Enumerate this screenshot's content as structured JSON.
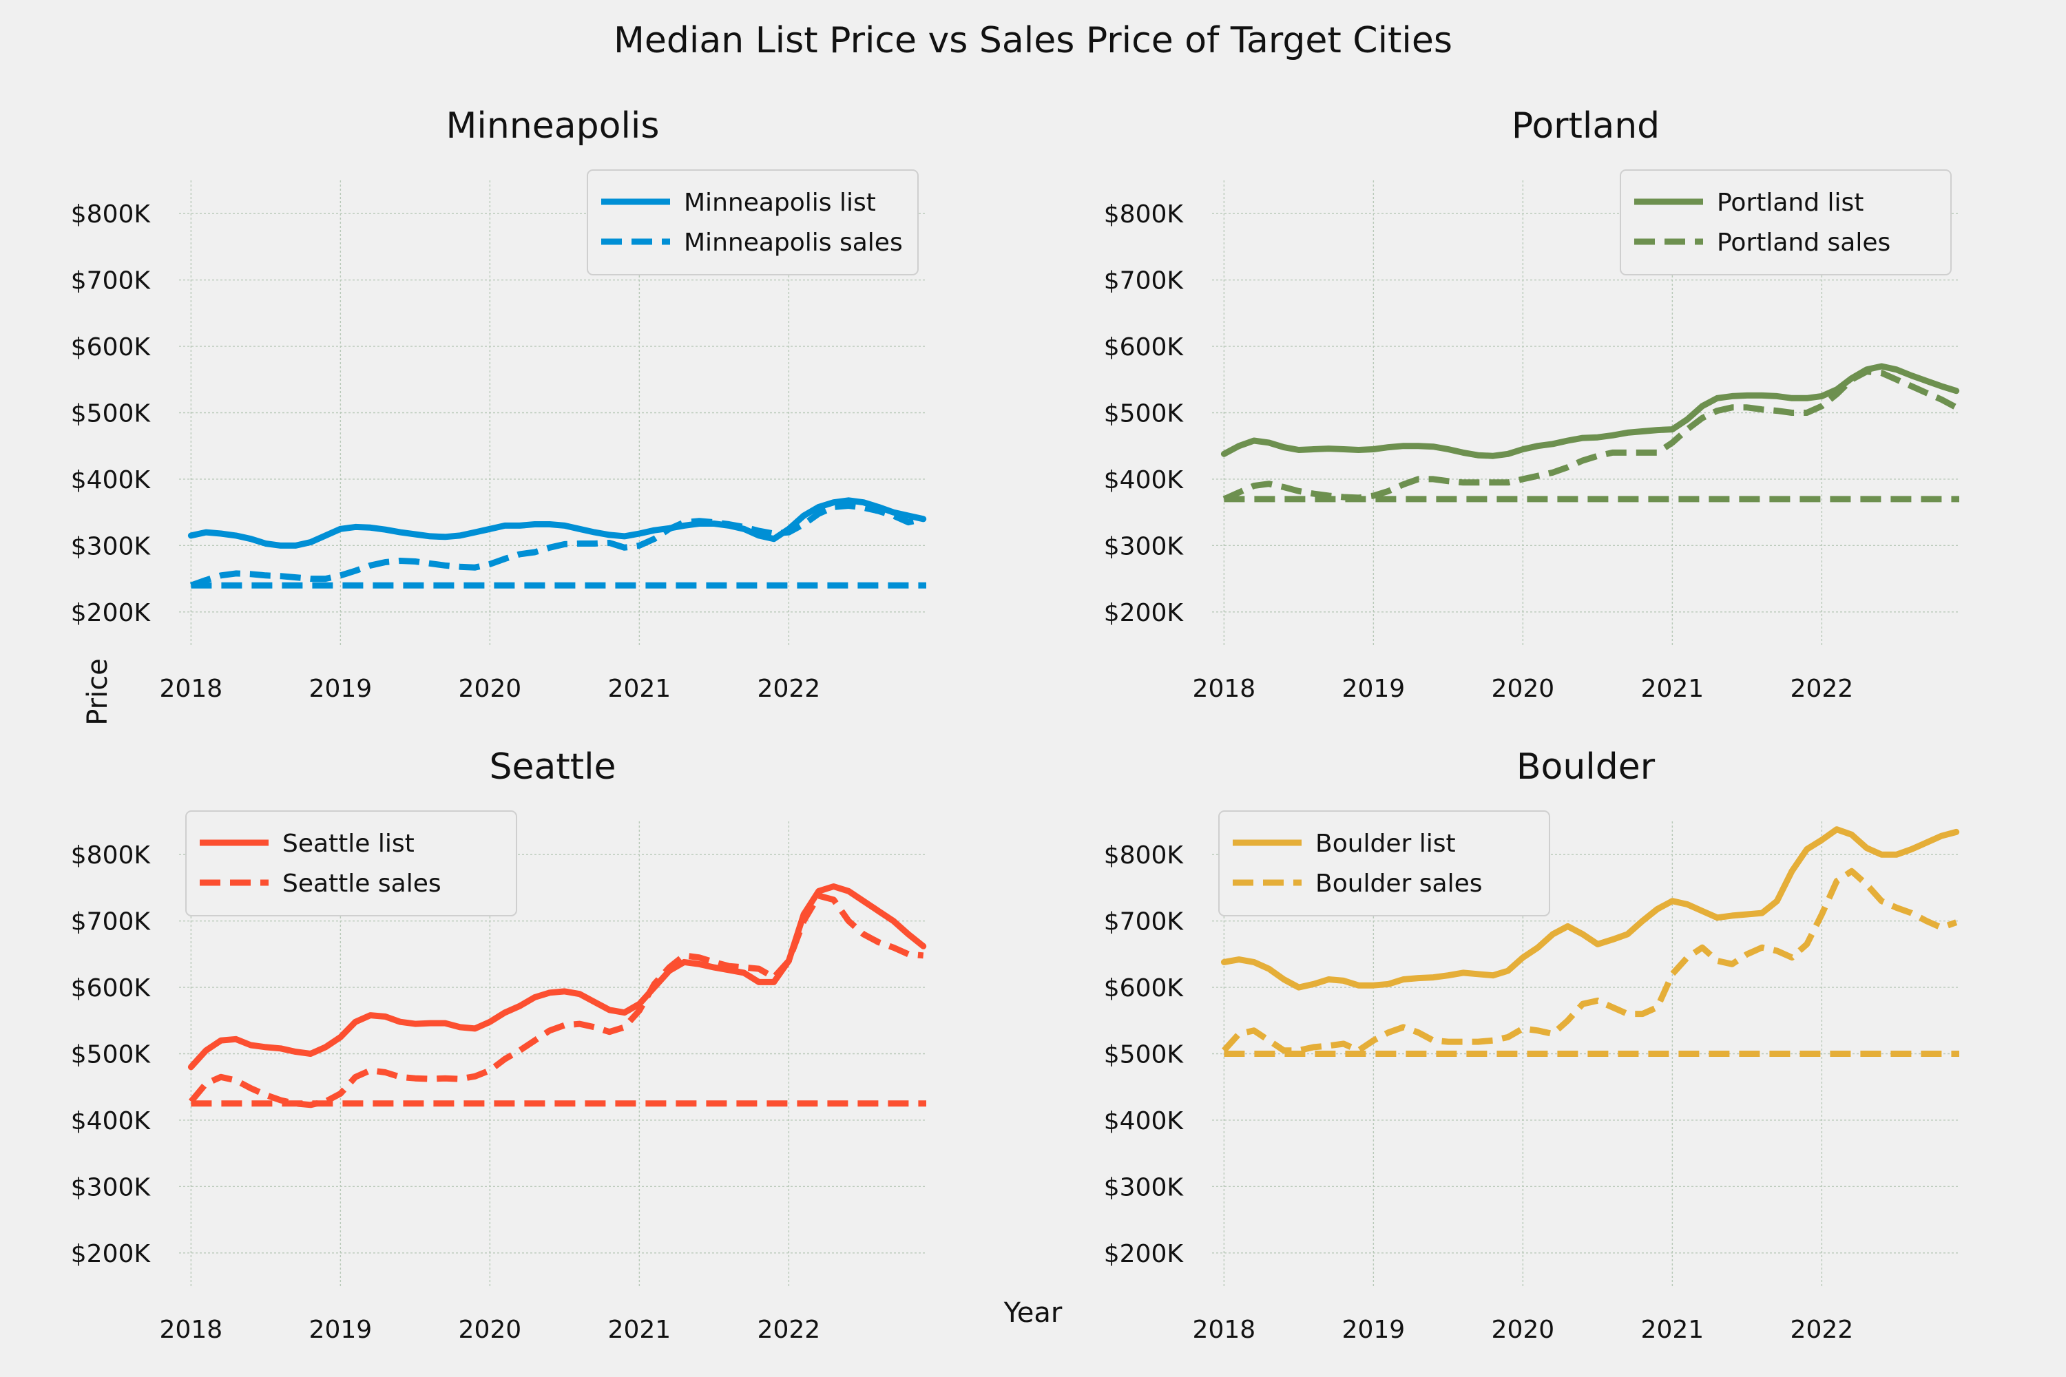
{
  "figure": {
    "title": "Median List Price vs Sales Price of Target Cities",
    "xlabel": "Year",
    "ylabel": "Price"
  },
  "chart_data": [
    {
      "type": "line",
      "title": "Minneapolis",
      "color": "#008fd5",
      "xlim": [
        2017.92,
        2022.92
      ],
      "ylim": [
        150,
        850
      ],
      "xticks": [
        2018,
        2019,
        2020,
        2021,
        2022
      ],
      "yticks": [
        200,
        300,
        400,
        500,
        600,
        700,
        800
      ],
      "ytick_labels": [
        "$200K",
        "$300K",
        "$400K",
        "$500K",
        "$600K",
        "$700K",
        "$800K"
      ],
      "grid": true,
      "legend_position": "top-right",
      "series": [
        {
          "name": "Minneapolis list",
          "style": "solid",
          "x": [
            2018.0,
            2018.1,
            2018.2,
            2018.3,
            2018.4,
            2018.5,
            2018.6,
            2018.7,
            2018.8,
            2018.9,
            2019.0,
            2019.1,
            2019.2,
            2019.3,
            2019.4,
            2019.5,
            2019.6,
            2019.7,
            2019.8,
            2019.9,
            2020.0,
            2020.1,
            2020.2,
            2020.3,
            2020.4,
            2020.5,
            2020.6,
            2020.7,
            2020.8,
            2020.9,
            2021.0,
            2021.1,
            2021.2,
            2021.3,
            2021.4,
            2021.5,
            2021.6,
            2021.7,
            2021.8,
            2021.9,
            2022.0,
            2022.1,
            2022.2,
            2022.3,
            2022.4,
            2022.5,
            2022.6,
            2022.7,
            2022.8,
            2022.9
          ],
          "y": [
            315,
            320,
            318,
            315,
            310,
            303,
            300,
            300,
            305,
            315,
            325,
            328,
            327,
            324,
            320,
            317,
            314,
            313,
            315,
            320,
            325,
            330,
            330,
            332,
            332,
            330,
            325,
            320,
            316,
            314,
            318,
            323,
            326,
            330,
            333,
            333,
            330,
            325,
            315,
            310,
            325,
            345,
            358,
            365,
            368,
            365,
            358,
            350,
            345,
            340
          ]
        },
        {
          "name": "Minneapolis sales",
          "style": "dashed",
          "x": [
            2018.0,
            2018.1,
            2018.2,
            2018.3,
            2018.4,
            2018.5,
            2018.6,
            2018.7,
            2018.8,
            2018.9,
            2019.0,
            2019.1,
            2019.2,
            2019.3,
            2019.4,
            2019.5,
            2019.6,
            2019.7,
            2019.8,
            2019.9,
            2020.0,
            2020.1,
            2020.2,
            2020.3,
            2020.4,
            2020.5,
            2020.6,
            2020.7,
            2020.8,
            2020.9,
            2021.0,
            2021.1,
            2021.2,
            2021.3,
            2021.4,
            2021.5,
            2021.6,
            2021.7,
            2021.8,
            2021.9,
            2022.0,
            2022.1,
            2022.2,
            2022.3,
            2022.4,
            2022.5,
            2022.6,
            2022.7,
            2022.8,
            2022.9
          ],
          "y": [
            240,
            248,
            255,
            258,
            257,
            255,
            254,
            252,
            250,
            250,
            255,
            262,
            270,
            275,
            277,
            276,
            273,
            270,
            268,
            267,
            272,
            280,
            287,
            290,
            297,
            302,
            303,
            303,
            304,
            297,
            300,
            310,
            325,
            335,
            337,
            335,
            332,
            328,
            322,
            318,
            320,
            332,
            348,
            358,
            360,
            357,
            352,
            345,
            335,
            340
          ]
        },
        {
          "name": "",
          "style": "dashed",
          "x": [
            2018.0,
            2022.92
          ],
          "y": [
            240,
            240
          ]
        }
      ]
    },
    {
      "type": "line",
      "title": "Portland",
      "color": "#6d904f",
      "xlim": [
        2017.92,
        2022.92
      ],
      "ylim": [
        150,
        850
      ],
      "xticks": [
        2018,
        2019,
        2020,
        2021,
        2022
      ],
      "yticks": [
        200,
        300,
        400,
        500,
        600,
        700,
        800
      ],
      "ytick_labels": [
        "$200K",
        "$300K",
        "$400K",
        "$500K",
        "$600K",
        "$700K",
        "$800K"
      ],
      "grid": true,
      "legend_position": "top-right",
      "series": [
        {
          "name": "Portland list",
          "style": "solid",
          "x": [
            2018.0,
            2018.1,
            2018.2,
            2018.3,
            2018.4,
            2018.5,
            2018.6,
            2018.7,
            2018.8,
            2018.9,
            2019.0,
            2019.1,
            2019.2,
            2019.3,
            2019.4,
            2019.5,
            2019.6,
            2019.7,
            2019.8,
            2019.9,
            2020.0,
            2020.1,
            2020.2,
            2020.3,
            2020.4,
            2020.5,
            2020.6,
            2020.7,
            2020.8,
            2020.9,
            2021.0,
            2021.1,
            2021.2,
            2021.3,
            2021.4,
            2021.5,
            2021.6,
            2021.7,
            2021.8,
            2021.9,
            2022.0,
            2022.1,
            2022.2,
            2022.3,
            2022.4,
            2022.5,
            2022.6,
            2022.7,
            2022.8,
            2022.9
          ],
          "y": [
            438,
            450,
            458,
            455,
            448,
            444,
            445,
            446,
            445,
            444,
            445,
            448,
            450,
            450,
            449,
            445,
            440,
            436,
            435,
            438,
            445,
            450,
            453,
            458,
            462,
            463,
            466,
            470,
            472,
            474,
            475,
            490,
            510,
            522,
            525,
            526,
            526,
            525,
            522,
            522,
            525,
            535,
            552,
            565,
            570,
            565,
            556,
            548,
            540,
            533
          ]
        },
        {
          "name": "Portland sales",
          "style": "dashed",
          "x": [
            2018.0,
            2018.1,
            2018.2,
            2018.3,
            2018.4,
            2018.5,
            2018.6,
            2018.7,
            2018.8,
            2018.9,
            2019.0,
            2019.1,
            2019.2,
            2019.3,
            2019.4,
            2019.5,
            2019.6,
            2019.7,
            2019.8,
            2019.9,
            2020.0,
            2020.1,
            2020.2,
            2020.3,
            2020.4,
            2020.5,
            2020.6,
            2020.7,
            2020.8,
            2020.9,
            2021.0,
            2021.1,
            2021.2,
            2021.3,
            2021.4,
            2021.5,
            2021.6,
            2021.7,
            2021.8,
            2021.9,
            2022.0,
            2022.1,
            2022.2,
            2022.3,
            2022.4,
            2022.5,
            2022.6,
            2022.7,
            2022.8,
            2022.9
          ],
          "y": [
            370,
            380,
            390,
            393,
            388,
            382,
            378,
            375,
            373,
            372,
            375,
            382,
            392,
            400,
            400,
            397,
            395,
            395,
            395,
            395,
            400,
            405,
            410,
            418,
            428,
            435,
            440,
            440,
            440,
            440,
            455,
            475,
            492,
            503,
            508,
            508,
            505,
            503,
            500,
            500,
            510,
            528,
            550,
            562,
            560,
            550,
            540,
            530,
            520,
            508
          ]
        },
        {
          "name": "",
          "style": "dashed",
          "x": [
            2018.0,
            2022.92
          ],
          "y": [
            370,
            370
          ]
        }
      ]
    },
    {
      "type": "line",
      "title": "Seattle",
      "color": "#fc4f30",
      "xlim": [
        2017.92,
        2022.92
      ],
      "ylim": [
        150,
        850
      ],
      "xticks": [
        2018,
        2019,
        2020,
        2021,
        2022
      ],
      "yticks": [
        200,
        300,
        400,
        500,
        600,
        700,
        800
      ],
      "ytick_labels": [
        "$200K",
        "$300K",
        "$400K",
        "$500K",
        "$600K",
        "$700K",
        "$800K"
      ],
      "grid": true,
      "legend_position": "top-left",
      "series": [
        {
          "name": "Seattle list",
          "style": "solid",
          "x": [
            2018.0,
            2018.1,
            2018.2,
            2018.3,
            2018.4,
            2018.5,
            2018.6,
            2018.7,
            2018.8,
            2018.9,
            2019.0,
            2019.1,
            2019.2,
            2019.3,
            2019.4,
            2019.5,
            2019.6,
            2019.7,
            2019.8,
            2019.9,
            2020.0,
            2020.1,
            2020.2,
            2020.3,
            2020.4,
            2020.5,
            2020.6,
            2020.7,
            2020.8,
            2020.9,
            2021.0,
            2021.1,
            2021.2,
            2021.3,
            2021.4,
            2021.5,
            2021.6,
            2021.7,
            2021.8,
            2021.9,
            2022.0,
            2022.1,
            2022.2,
            2022.3,
            2022.4,
            2022.5,
            2022.6,
            2022.7,
            2022.8,
            2022.9
          ],
          "y": [
            480,
            505,
            520,
            522,
            513,
            510,
            508,
            503,
            500,
            510,
            525,
            548,
            558,
            556,
            548,
            545,
            546,
            546,
            540,
            538,
            548,
            562,
            572,
            585,
            592,
            594,
            590,
            578,
            566,
            562,
            575,
            600,
            625,
            638,
            635,
            630,
            626,
            622,
            608,
            608,
            640,
            710,
            745,
            752,
            745,
            730,
            715,
            700,
            680,
            662
          ]
        },
        {
          "name": "Seattle sales",
          "style": "dashed",
          "x": [
            2018.0,
            2018.1,
            2018.2,
            2018.3,
            2018.4,
            2018.5,
            2018.6,
            2018.7,
            2018.8,
            2018.9,
            2019.0,
            2019.1,
            2019.2,
            2019.3,
            2019.4,
            2019.5,
            2019.6,
            2019.7,
            2019.8,
            2019.9,
            2020.0,
            2020.1,
            2020.2,
            2020.3,
            2020.4,
            2020.5,
            2020.6,
            2020.7,
            2020.8,
            2020.9,
            2021.0,
            2021.1,
            2021.2,
            2021.3,
            2021.4,
            2021.5,
            2021.6,
            2021.7,
            2021.8,
            2021.9,
            2022.0,
            2022.1,
            2022.2,
            2022.3,
            2022.4,
            2022.5,
            2022.6,
            2022.7,
            2022.8,
            2022.9
          ],
          "y": [
            428,
            455,
            465,
            460,
            448,
            438,
            430,
            425,
            423,
            428,
            440,
            465,
            475,
            472,
            465,
            463,
            462,
            463,
            462,
            466,
            475,
            492,
            505,
            520,
            535,
            543,
            545,
            540,
            533,
            540,
            565,
            605,
            630,
            648,
            645,
            638,
            632,
            630,
            628,
            615,
            640,
            700,
            738,
            732,
            700,
            680,
            668,
            660,
            650,
            648
          ]
        },
        {
          "name": "",
          "style": "dashed",
          "x": [
            2018.0,
            2022.92
          ],
          "y": [
            425,
            425
          ]
        }
      ]
    },
    {
      "type": "line",
      "title": "Boulder",
      "color": "#e5ae38",
      "xlim": [
        2017.92,
        2022.92
      ],
      "ylim": [
        150,
        850
      ],
      "xticks": [
        2018,
        2019,
        2020,
        2021,
        2022
      ],
      "yticks": [
        200,
        300,
        400,
        500,
        600,
        700,
        800
      ],
      "ytick_labels": [
        "$200K",
        "$300K",
        "$400K",
        "$500K",
        "$600K",
        "$700K",
        "$800K"
      ],
      "grid": true,
      "legend_position": "top-left",
      "series": [
        {
          "name": "Boulder list",
          "style": "solid",
          "x": [
            2018.0,
            2018.1,
            2018.2,
            2018.3,
            2018.4,
            2018.5,
            2018.6,
            2018.7,
            2018.8,
            2018.9,
            2019.0,
            2019.1,
            2019.2,
            2019.3,
            2019.4,
            2019.5,
            2019.6,
            2019.7,
            2019.8,
            2019.9,
            2020.0,
            2020.1,
            2020.2,
            2020.3,
            2020.4,
            2020.5,
            2020.6,
            2020.7,
            2020.8,
            2020.9,
            2021.0,
            2021.1,
            2021.2,
            2021.3,
            2021.4,
            2021.5,
            2021.6,
            2021.7,
            2021.8,
            2021.9,
            2022.0,
            2022.1,
            2022.2,
            2022.3,
            2022.4,
            2022.5,
            2022.6,
            2022.7,
            2022.8,
            2022.9
          ],
          "y": [
            638,
            642,
            638,
            628,
            612,
            600,
            605,
            612,
            610,
            603,
            603,
            605,
            612,
            614,
            615,
            618,
            622,
            620,
            618,
            625,
            645,
            660,
            680,
            692,
            680,
            665,
            672,
            680,
            700,
            718,
            730,
            725,
            715,
            705,
            708,
            710,
            712,
            730,
            775,
            808,
            822,
            838,
            830,
            810,
            800,
            800,
            808,
            818,
            828,
            834
          ]
        },
        {
          "name": "Boulder sales",
          "style": "dashed",
          "x": [
            2018.0,
            2018.1,
            2018.2,
            2018.3,
            2018.4,
            2018.5,
            2018.6,
            2018.7,
            2018.8,
            2018.9,
            2019.0,
            2019.1,
            2019.2,
            2019.3,
            2019.4,
            2019.5,
            2019.6,
            2019.7,
            2019.8,
            2019.9,
            2020.0,
            2020.1,
            2020.2,
            2020.3,
            2020.4,
            2020.5,
            2020.6,
            2020.7,
            2020.8,
            2020.9,
            2021.0,
            2021.1,
            2021.2,
            2021.3,
            2021.4,
            2021.5,
            2021.6,
            2021.7,
            2021.8,
            2021.9,
            2022.0,
            2022.1,
            2022.2,
            2022.3,
            2022.4,
            2022.5,
            2022.6,
            2022.7,
            2022.8,
            2022.9
          ],
          "y": [
            505,
            530,
            535,
            520,
            505,
            505,
            510,
            512,
            515,
            505,
            520,
            532,
            540,
            532,
            520,
            518,
            518,
            518,
            520,
            525,
            538,
            535,
            530,
            550,
            575,
            580,
            570,
            560,
            560,
            570,
            620,
            645,
            660,
            640,
            635,
            650,
            660,
            655,
            645,
            665,
            710,
            760,
            775,
            755,
            730,
            720,
            712,
            700,
            690,
            698
          ]
        },
        {
          "name": "",
          "style": "dashed",
          "x": [
            2018.0,
            2022.92
          ],
          "y": [
            500,
            500
          ]
        }
      ]
    }
  ]
}
